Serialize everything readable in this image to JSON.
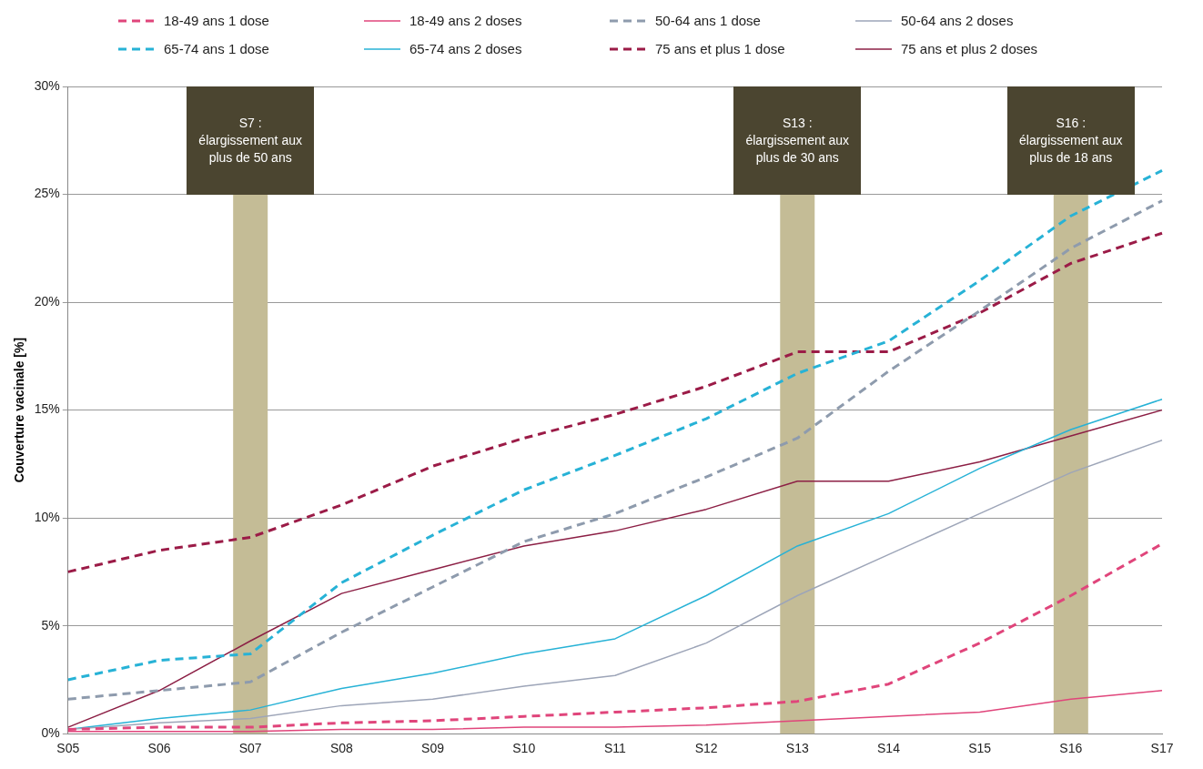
{
  "chart_data": {
    "type": "line",
    "ylabel": "Couverture vacinale [%]",
    "categories": [
      "S05",
      "S06",
      "S07",
      "S08",
      "S09",
      "S10",
      "S11",
      "S12",
      "S13",
      "S14",
      "S15",
      "S16",
      "S17"
    ],
    "ylim": [
      0,
      30
    ],
    "yticks": [
      {
        "value": 0,
        "label": "0%"
      },
      {
        "value": 5,
        "label": "5%"
      },
      {
        "value": 10,
        "label": "10%"
      },
      {
        "value": 15,
        "label": "15%"
      },
      {
        "value": 20,
        "label": "20%"
      },
      {
        "value": 25,
        "label": "25%"
      },
      {
        "value": 30,
        "label": "30%"
      }
    ],
    "grid": "y",
    "legend": "top",
    "marker": "none",
    "series": [
      {
        "name": "18-49 ans 1 dose",
        "color": "#e0457b",
        "line_style": "dashed",
        "values": [
          0.2,
          0.3,
          0.3,
          0.5,
          0.6,
          0.8,
          1.0,
          1.2,
          1.5,
          2.3,
          4.2,
          6.4,
          8.8
        ]
      },
      {
        "name": "18-49 ans 2 doses",
        "color": "#e0457b",
        "line_style": "solid",
        "values": [
          0.1,
          0.1,
          0.1,
          0.2,
          0.2,
          0.3,
          0.3,
          0.4,
          0.6,
          0.8,
          1.0,
          1.6,
          2.0
        ]
      },
      {
        "name": "50-64 ans 1 dose",
        "color": "#8e9bad",
        "line_style": "dashed",
        "values": [
          1.6,
          2.0,
          2.4,
          4.7,
          6.8,
          8.9,
          10.2,
          11.9,
          13.7,
          16.8,
          19.6,
          22.5,
          24.7
        ]
      },
      {
        "name": "50-64 ans 2 doses",
        "color": "#9da5b8",
        "line_style": "solid",
        "values": [
          0.2,
          0.5,
          0.7,
          1.3,
          1.6,
          2.2,
          2.7,
          4.2,
          6.4,
          8.3,
          10.2,
          12.1,
          13.6
        ]
      },
      {
        "name": "65-74 ans 1 dose",
        "color": "#27b2d6",
        "line_style": "dashed",
        "values": [
          2.5,
          3.4,
          3.7,
          7.0,
          9.2,
          11.3,
          12.9,
          14.6,
          16.7,
          18.2,
          21.0,
          24.0,
          26.1
        ]
      },
      {
        "name": "65-74 ans 2 doses",
        "color": "#27b2d6",
        "line_style": "solid",
        "values": [
          0.2,
          0.7,
          1.1,
          2.1,
          2.8,
          3.7,
          4.4,
          6.4,
          8.7,
          10.2,
          12.3,
          14.1,
          15.5
        ]
      },
      {
        "name": "75 ans et plus  1 dose",
        "color": "#9b1b47",
        "line_style": "dashed",
        "values": [
          7.5,
          8.5,
          9.1,
          10.6,
          12.4,
          13.7,
          14.8,
          16.1,
          17.7,
          17.7,
          19.5,
          21.8,
          23.2
        ]
      },
      {
        "name": "75 ans et plus  2 doses",
        "color": "#8c1f45",
        "line_style": "solid",
        "values": [
          0.3,
          2.0,
          4.3,
          6.5,
          7.6,
          8.7,
          9.4,
          10.4,
          11.7,
          11.7,
          12.6,
          13.8,
          15.0
        ]
      }
    ],
    "ref_lines": [
      {
        "axis": "x",
        "value": "S07",
        "label": "S7 :\nélargissement aux\nplus de 50 ans",
        "color": "#c4bc96"
      },
      {
        "axis": "x",
        "value": "S13",
        "label": "S13 :\nélargissement aux\nplus de 30 ans",
        "color": "#c4bc96"
      },
      {
        "axis": "x",
        "value": "S16",
        "label": "S16 :\nélargissement aux\nplus de 18 ans",
        "color": "#c4bc96"
      }
    ]
  }
}
